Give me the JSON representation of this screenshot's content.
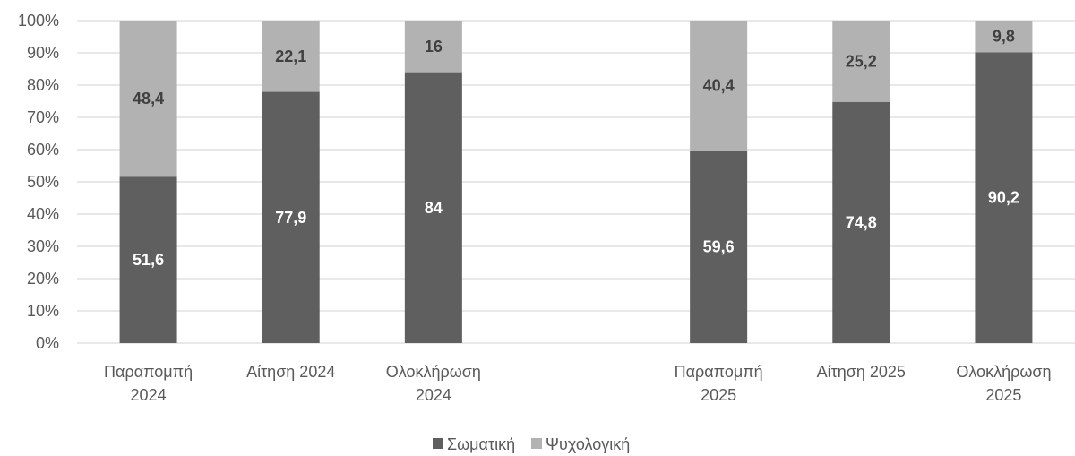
{
  "chart_data": {
    "type": "bar",
    "stacked": true,
    "stack_mode": "percent",
    "categories": [
      [
        "Παραπομπή",
        "2024"
      ],
      [
        "Αίτηση 2024"
      ],
      [
        "Ολοκλήρωση",
        "2024"
      ],
      [],
      [
        "Παραπομπή",
        "2025"
      ],
      [
        "Αίτηση 2025"
      ],
      [
        "Ολοκλήρωση",
        "2025"
      ]
    ],
    "series": [
      {
        "name": "Σωματική",
        "color": "#5f5f5f",
        "label_color": "#ffffff",
        "values": [
          51.6,
          77.9,
          84,
          null,
          59.6,
          74.8,
          90.2
        ],
        "labels": [
          "51,6",
          "77,9",
          "84",
          "",
          "59,6",
          "74,8",
          "90,2"
        ]
      },
      {
        "name": "Ψυχολογική",
        "color": "#b2b2b2",
        "label_color": "#404040",
        "values": [
          48.4,
          22.1,
          16,
          null,
          40.4,
          25.2,
          9.8
        ],
        "labels": [
          "48,4",
          "22,1",
          "16",
          "",
          "40,4",
          "25,2",
          "9,8"
        ]
      }
    ],
    "y_ticks": [
      "0%",
      "10%",
      "20%",
      "30%",
      "40%",
      "50%",
      "60%",
      "70%",
      "80%",
      "90%",
      "100%"
    ],
    "ylim": [
      0,
      100
    ],
    "title": "",
    "xlabel": "",
    "ylabel": "",
    "grid": true,
    "legend_position": "bottom"
  }
}
